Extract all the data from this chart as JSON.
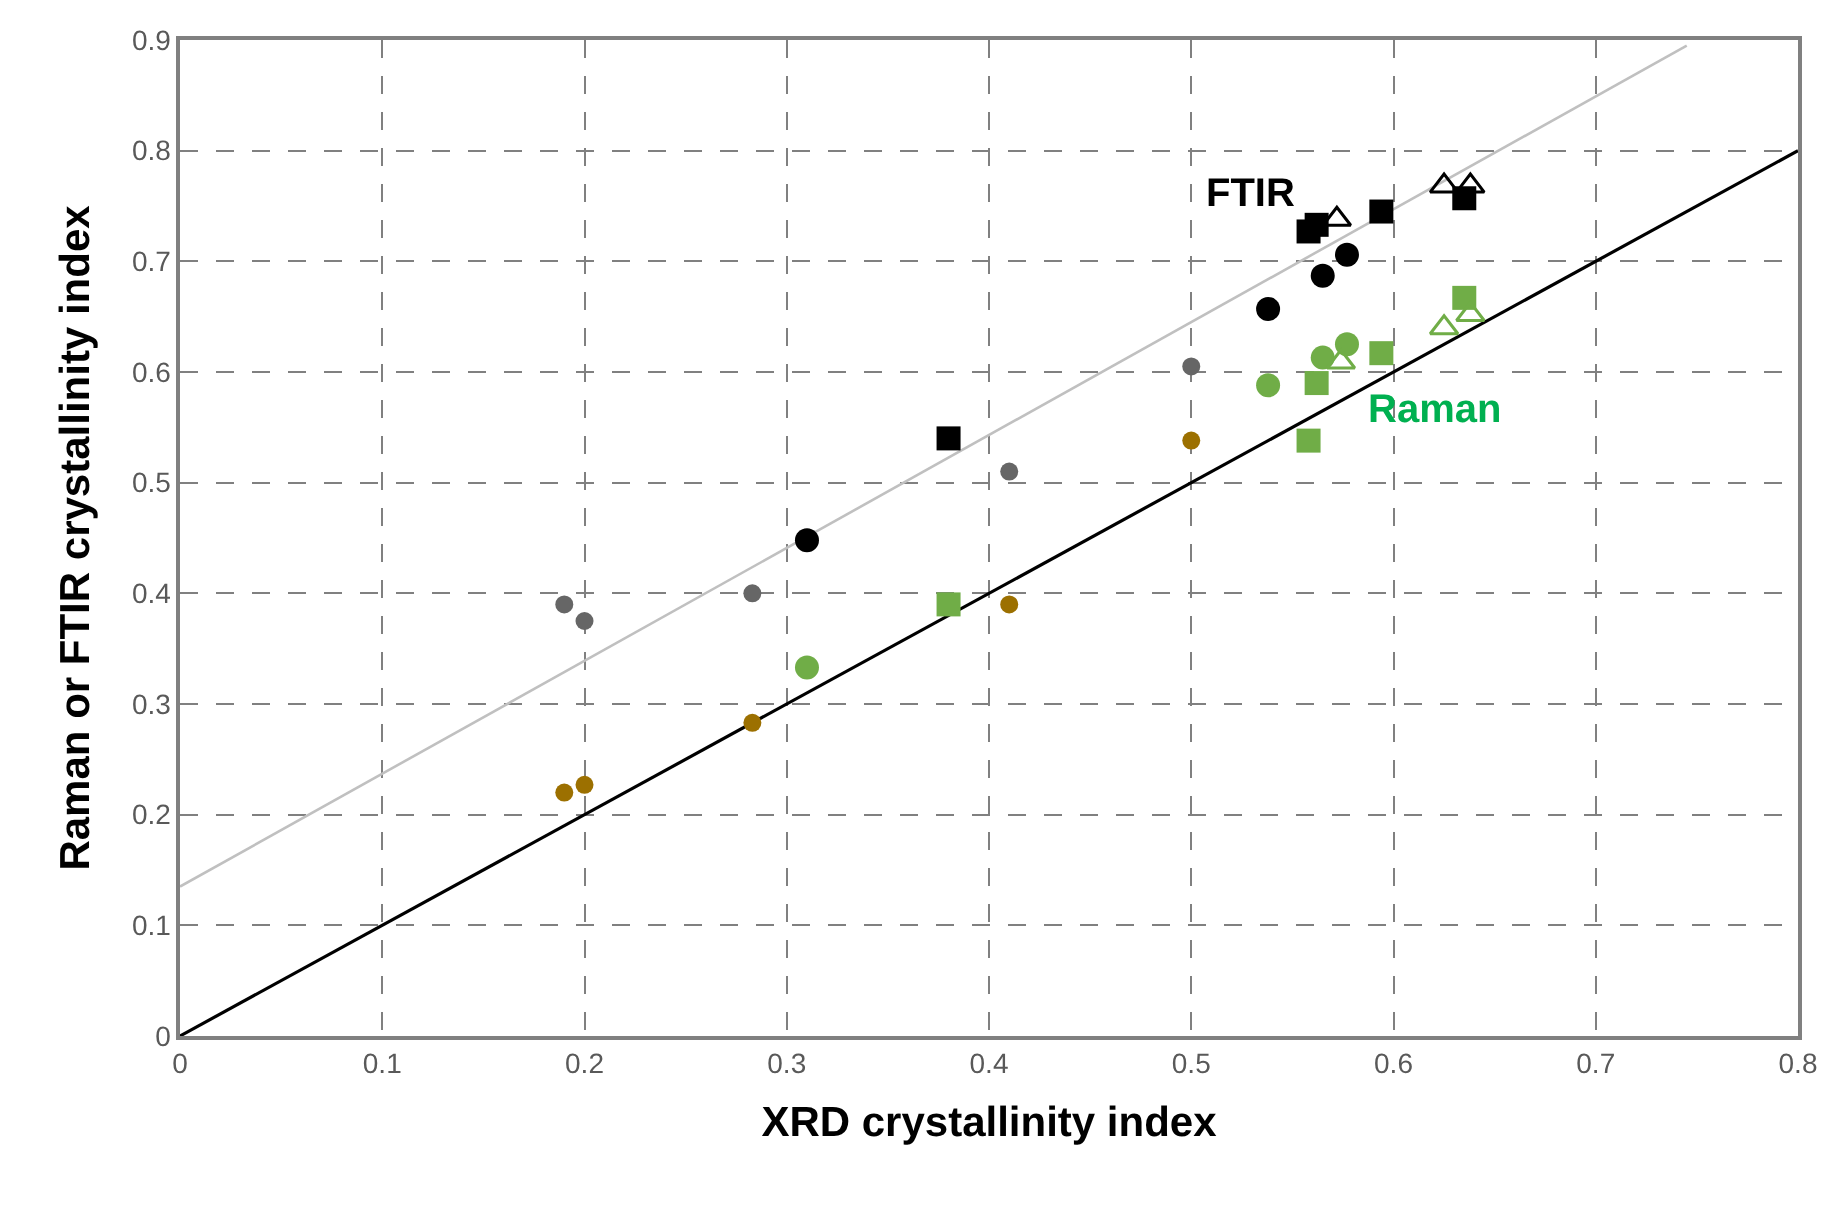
{
  "chart_data": {
    "type": "scatter",
    "xlabel": "XRD crystallinity index",
    "ylabel": "Raman or FTIR crystallinity index",
    "xlim": [
      0,
      0.8
    ],
    "xticks": [
      0,
      0.1,
      0.2,
      0.3,
      0.4,
      0.5,
      0.6,
      0.7,
      0.8
    ],
    "ylim": [
      0,
      0.9
    ],
    "yticks": [
      0,
      0.1,
      0.2,
      0.3,
      0.4,
      0.5,
      0.6,
      0.7,
      0.8,
      0.9
    ],
    "grid": true,
    "series": [
      {
        "type": "line",
        "color": "#c0c0c0",
        "marker": "none",
        "line_style": "solid",
        "x": [
          0,
          0.745
        ],
        "values": [
          0.135,
          0.895
        ]
      },
      {
        "type": "line",
        "color": "#000000",
        "marker": "none",
        "line_style": "solid",
        "x": [
          0,
          0.8
        ],
        "values": [
          0,
          0.8
        ]
      },
      {
        "color": "#666666",
        "marker": "circle",
        "x": [
          0.19,
          0.2,
          0.283,
          0.41,
          0.5
        ],
        "values": [
          0.39,
          0.375,
          0.4,
          0.51,
          0.605
        ]
      },
      {
        "color": "#9c7000",
        "marker": "circle",
        "x": [
          0.19,
          0.2,
          0.283,
          0.41,
          0.5
        ],
        "values": [
          0.22,
          0.227,
          0.283,
          0.39,
          0.538
        ]
      },
      {
        "color": "#000000",
        "marker": "circle",
        "x": [
          0.31,
          0.538,
          0.565,
          0.577
        ],
        "values": [
          0.448,
          0.657,
          0.687,
          0.706
        ]
      },
      {
        "color": "#000000",
        "marker": "square",
        "x": [
          0.38,
          0.558,
          0.562,
          0.594,
          0.635
        ],
        "values": [
          0.54,
          0.727,
          0.733,
          0.745,
          0.757
        ]
      },
      {
        "color": "#000000",
        "marker": "triangle-open",
        "x": [
          0.572,
          0.625,
          0.638
        ],
        "values": [
          0.738,
          0.768,
          0.768
        ]
      },
      {
        "color": "#70ad47",
        "marker": "circle",
        "x": [
          0.31,
          0.538,
          0.565,
          0.577
        ],
        "values": [
          0.333,
          0.588,
          0.613,
          0.625
        ]
      },
      {
        "color": "#70ad47",
        "marker": "square",
        "x": [
          0.38,
          0.558,
          0.562,
          0.594,
          0.635
        ],
        "values": [
          0.39,
          0.538,
          0.59,
          0.617,
          0.667
        ]
      },
      {
        "color": "#70ad47",
        "marker": "triangle-open",
        "x": [
          0.574,
          0.625,
          0.638
        ],
        "values": [
          0.609,
          0.64,
          0.652
        ]
      }
    ],
    "annotations": [
      "FTIR",
      "Raman"
    ]
  }
}
